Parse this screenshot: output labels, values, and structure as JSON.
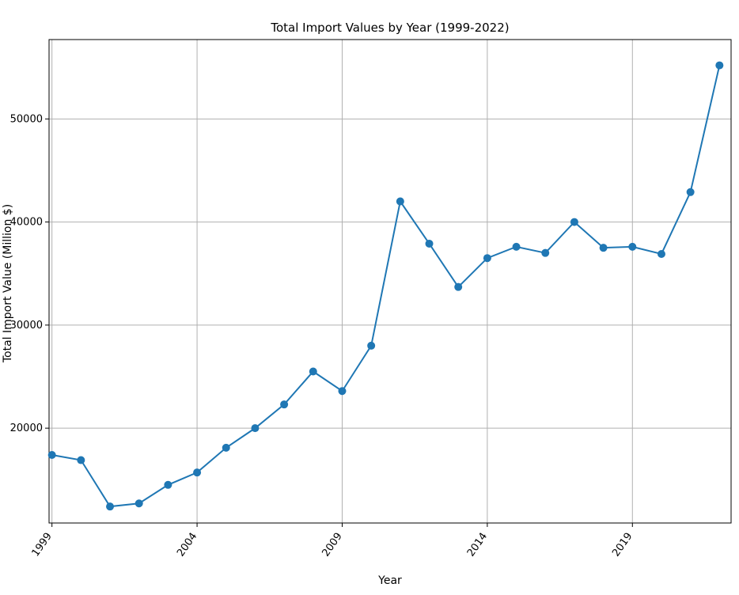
{
  "chart_data": {
    "type": "line",
    "title": "Total Import Values by Year (1999-2022)",
    "xlabel": "Year",
    "ylabel": "Total Import Value (Million $)",
    "x": [
      1999,
      2000,
      2001,
      2002,
      2003,
      2004,
      2005,
      2006,
      2007,
      2008,
      2009,
      2010,
      2011,
      2012,
      2013,
      2014,
      2015,
      2016,
      2017,
      2018,
      2019,
      2020,
      2021,
      2022
    ],
    "series": [
      {
        "values": [
          17400,
          16900,
          12400,
          12700,
          14500,
          15700,
          18100,
          20000,
          22300,
          25500,
          23600,
          28000,
          42000,
          37900,
          33700,
          36500,
          37600,
          37000,
          40000,
          37500,
          37600,
          36900,
          42900,
          55200
        ]
      }
    ],
    "xticks": [
      "1999",
      "2004",
      "2009",
      "2014",
      "2019"
    ],
    "yticks": [
      "20000",
      "30000",
      "40000",
      "50000"
    ],
    "xlim": [
      1998.9,
      2022.4
    ],
    "ylim": [
      10800,
      57700
    ],
    "grid": true,
    "legend": "none",
    "color": "#1f77b4"
  }
}
